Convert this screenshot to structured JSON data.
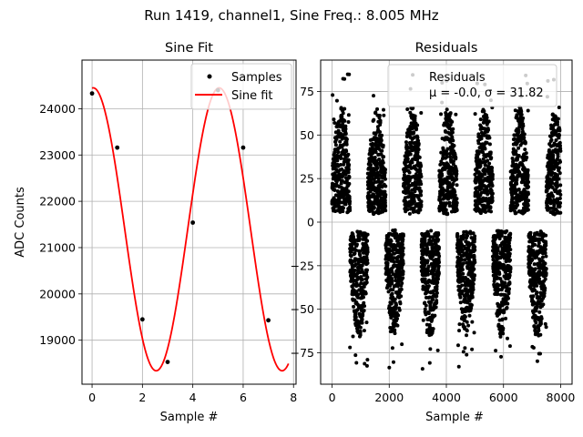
{
  "suptitle": "Run 1419, channel1, Sine Freq.: 8.005 MHz",
  "colors": {
    "fit": "#ff0000",
    "samples": "#000000",
    "grid": "#b0b0b0"
  },
  "chart_data": [
    {
      "type": "line",
      "title": "Sine Fit",
      "xlabel": "Sample #",
      "ylabel": "ADC Counts",
      "xlim": [
        -0.4,
        8.1
      ],
      "ylim": [
        18050,
        25050
      ],
      "xticks": [
        0,
        2,
        4,
        6,
        8
      ],
      "yticks": [
        19000,
        20000,
        21000,
        22000,
        23000,
        24000
      ],
      "grid": true,
      "legend_position": "top-right",
      "series": [
        {
          "name": "Samples",
          "style": "scatter",
          "x": [
            0,
            1,
            2,
            3,
            4,
            5,
            6,
            7
          ],
          "y": [
            24330,
            23160,
            19450,
            18530,
            21540,
            24400,
            23160,
            19430
          ]
        },
        {
          "name": "Sine fit",
          "style": "line",
          "color": "#ff0000",
          "offset": 21395,
          "amplitude": 3055,
          "period_samples": 4.998,
          "phase_deg": 86.5,
          "x_range": [
            0,
            7.8
          ]
        }
      ]
    },
    {
      "type": "scatter",
      "title": "Residuals",
      "xlabel": "Sample #",
      "xlim": [
        -400,
        8400
      ],
      "ylim": [
        -93,
        93
      ],
      "xticks": [
        0,
        2000,
        4000,
        6000,
        8000
      ],
      "yticks": [
        -75,
        -50,
        -25,
        0,
        25,
        50,
        75
      ],
      "grid": true,
      "legend_position": "top-right",
      "legend_lines": [
        "Residuals",
        "μ = -0.0, σ = 31.82"
      ],
      "series": [
        {
          "name": "Residuals",
          "n_points": 8000,
          "mean": 0.0,
          "std": 31.82,
          "beat_period_samples": 1250
        }
      ]
    }
  ]
}
